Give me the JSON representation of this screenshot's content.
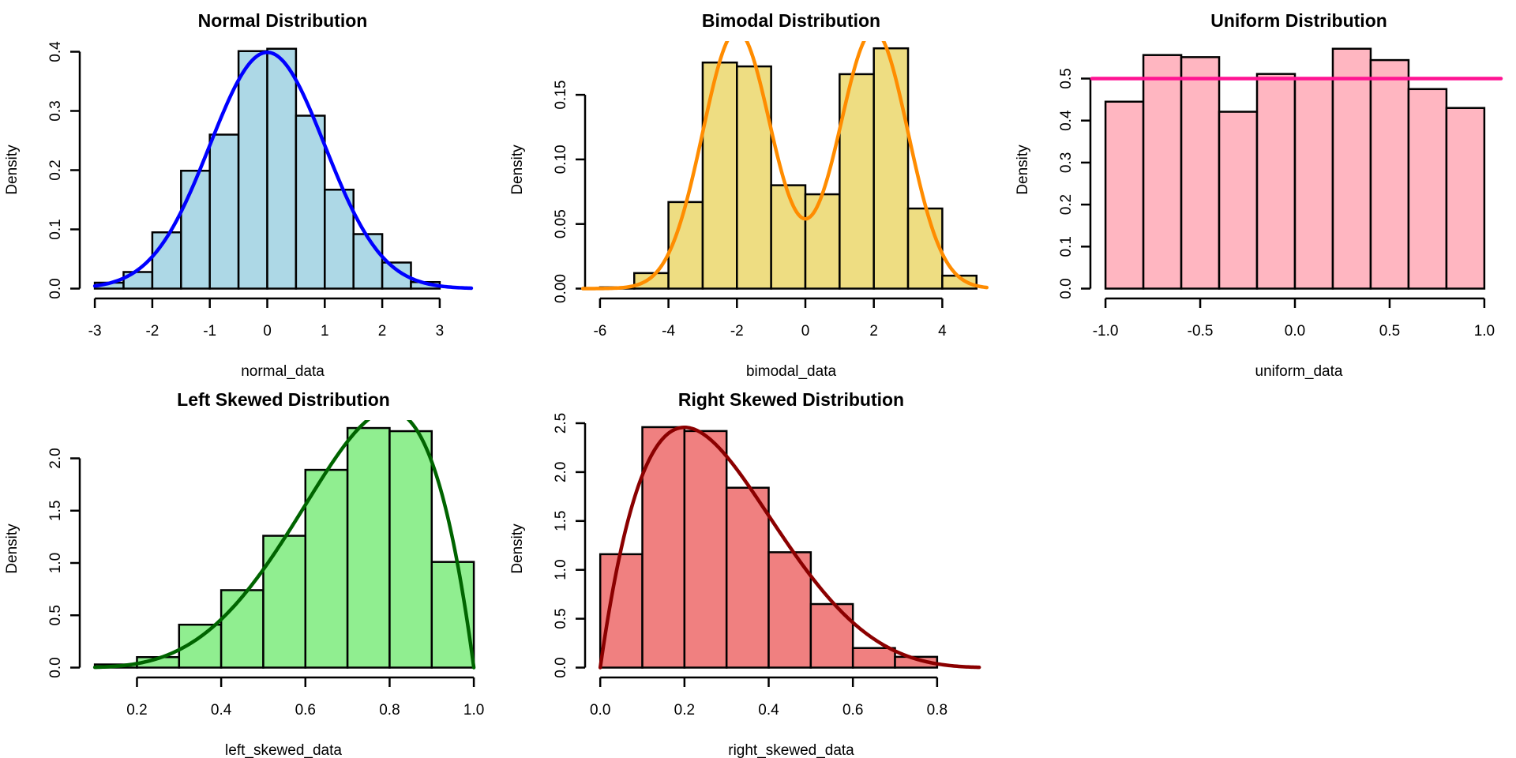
{
  "chart_data": [
    {
      "type": "bar",
      "id": "normal",
      "title": "Normal Distribution",
      "xlabel": "normal_data",
      "ylabel": "Density",
      "bar_color": "#ADD8E6",
      "curve_color": "#0000FF",
      "curve": {
        "kind": "normal",
        "mean": 0,
        "sd": 1,
        "from": -3.0,
        "to": 3.55
      },
      "bins": [
        -3.0,
        -2.5,
        -2.0,
        -1.5,
        -1.0,
        -0.5,
        0.0,
        0.5,
        1.0,
        1.5,
        2.0,
        2.5,
        3.0
      ],
      "values": [
        0.01,
        0.028,
        0.095,
        0.199,
        0.26,
        0.401,
        0.405,
        0.292,
        0.167,
        0.092,
        0.044,
        0.011
      ],
      "xticks": [
        -3,
        -2,
        -1,
        0,
        1,
        2,
        3
      ],
      "xtick_labels": [
        "-3",
        "-2",
        "-1",
        "0",
        "1",
        "2",
        "3"
      ],
      "yticks": [
        0.0,
        0.1,
        0.2,
        0.3,
        0.4
      ],
      "ytick_labels": [
        "0.0",
        "0.1",
        "0.2",
        "0.3",
        "0.4"
      ]
    },
    {
      "type": "bar",
      "id": "bimodal",
      "title": "Bimodal Distribution",
      "xlabel": "bimodal_data",
      "ylabel": "Density",
      "bar_color": "#EEDD82",
      "curve_color": "#FF8C00",
      "curve": {
        "kind": "mixture",
        "components": [
          {
            "mean": -2,
            "sd": 1,
            "weight": 0.5
          },
          {
            "mean": 2,
            "sd": 1,
            "weight": 0.5
          }
        ],
        "from": -6.5,
        "to": 5.3
      },
      "bins": [
        -6,
        -5,
        -4,
        -3,
        -2,
        -1,
        0,
        1,
        2,
        3,
        4,
        5
      ],
      "values": [
        0.001,
        0.012,
        0.067,
        0.175,
        0.172,
        0.08,
        0.073,
        0.166,
        0.186,
        0.062,
        0.01
      ],
      "xticks": [
        -6,
        -4,
        -2,
        0,
        2,
        4
      ],
      "xtick_labels": [
        "-6",
        "-4",
        "-2",
        "0",
        "2",
        "4"
      ],
      "yticks": [
        0.0,
        0.05,
        0.1,
        0.15
      ],
      "ytick_labels": [
        "0.00",
        "0.05",
        "0.10",
        "0.15"
      ]
    },
    {
      "type": "bar",
      "id": "uniform",
      "title": "Uniform Distribution",
      "xlabel": "uniform_data",
      "ylabel": "Density",
      "bar_color": "#FFB6C1",
      "curve_color": "#FF1493",
      "curve": {
        "kind": "uniform",
        "value": 0.5,
        "from": -1.0,
        "to": 1.0
      },
      "bins": [
        -1.0,
        -0.8,
        -0.6,
        -0.4,
        -0.2,
        0.0,
        0.2,
        0.4,
        0.6,
        0.8,
        1.0
      ],
      "values": [
        0.445,
        0.556,
        0.551,
        0.421,
        0.511,
        0.5,
        0.571,
        0.544,
        0.475,
        0.43
      ],
      "xticks": [
        -1.0,
        -0.5,
        0.0,
        0.5,
        1.0
      ],
      "xtick_labels": [
        "-1.0",
        "-0.5",
        "0.0",
        "0.5",
        "1.0"
      ],
      "yticks": [
        0.0,
        0.1,
        0.2,
        0.3,
        0.4,
        0.5
      ],
      "ytick_labels": [
        "0.0",
        "0.1",
        "0.2",
        "0.3",
        "0.4",
        "0.5"
      ]
    },
    {
      "type": "bar",
      "id": "left-skewed",
      "title": "Left Skewed Distribution",
      "xlabel": "left_skewed_data",
      "ylabel": "Density",
      "bar_color": "#90EE90",
      "curve_color": "#006400",
      "curve": {
        "kind": "beta",
        "a": 5,
        "b": 2,
        "from": 0.1,
        "to": 1.0
      },
      "bins": [
        0.1,
        0.2,
        0.3,
        0.4,
        0.5,
        0.6,
        0.7,
        0.8,
        0.9,
        1.0
      ],
      "values": [
        0.03,
        0.1,
        0.41,
        0.74,
        1.26,
        1.89,
        2.29,
        2.26,
        1.01
      ],
      "xticks": [
        0.2,
        0.4,
        0.6,
        0.8,
        1.0
      ],
      "xtick_labels": [
        "0.2",
        "0.4",
        "0.6",
        "0.8",
        "1.0"
      ],
      "yticks": [
        0.0,
        0.5,
        1.0,
        1.5,
        2.0
      ],
      "ytick_labels": [
        "0.0",
        "0.5",
        "1.0",
        "1.5",
        "2.0"
      ]
    },
    {
      "type": "bar",
      "id": "right-skewed",
      "title": "Right Skewed Distribution",
      "xlabel": "right_skewed_data",
      "ylabel": "Density",
      "bar_color": "#F08080",
      "curve_color": "#8B0000",
      "curve": {
        "kind": "beta",
        "a": 2,
        "b": 5,
        "from": 0.0,
        "to": 0.9
      },
      "bins": [
        0.0,
        0.1,
        0.2,
        0.3,
        0.4,
        0.5,
        0.6,
        0.7,
        0.8
      ],
      "values": [
        1.16,
        2.46,
        2.42,
        1.84,
        1.18,
        0.65,
        0.2,
        0.11
      ],
      "xticks": [
        0.0,
        0.2,
        0.4,
        0.6,
        0.8
      ],
      "xtick_labels": [
        "0.0",
        "0.2",
        "0.4",
        "0.6",
        "0.8"
      ],
      "yticks": [
        0.0,
        0.5,
        1.0,
        1.5,
        2.0,
        2.5
      ],
      "ytick_labels": [
        "0.0",
        "0.5",
        "1.0",
        "1.5",
        "2.0",
        "2.5"
      ]
    }
  ]
}
